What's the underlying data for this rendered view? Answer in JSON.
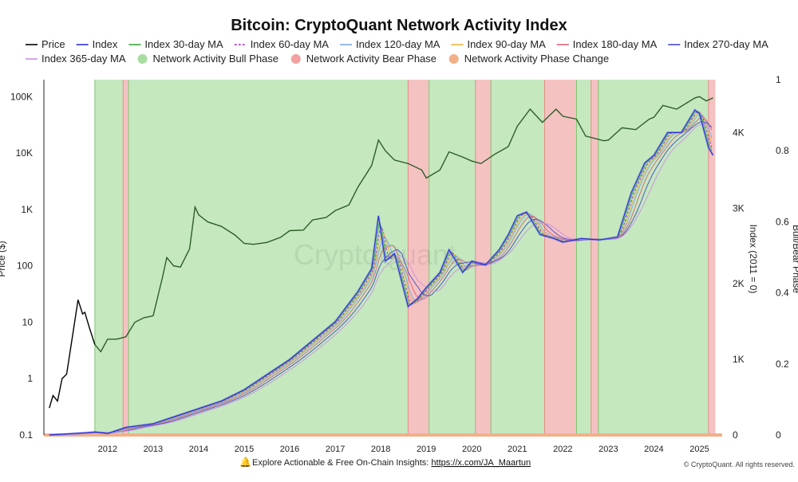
{
  "chart_data": {
    "type": "line",
    "title": "Bitcoin: CryptoQuant Network Activity Index",
    "ylabel_left": "Price ($)",
    "ylabel_right": "Index (2011 = 0)",
    "ylabel_far_right": "Bull/Bear Phase",
    "left_axis": {
      "scale": "log",
      "range": [
        0.1,
        200000
      ],
      "ticks": [
        0.1,
        1,
        10,
        100,
        1000,
        10000,
        100000
      ],
      "tick_labels": [
        "0.1",
        "1",
        "10",
        "100",
        "1K",
        "10K",
        "100K"
      ]
    },
    "right_axis": {
      "range": [
        0,
        4700
      ],
      "ticks": [
        0,
        1000,
        2000,
        3000,
        4000
      ],
      "tick_labels": [
        "0",
        "1K",
        "2K",
        "3K",
        "4K"
      ]
    },
    "far_right_axis": {
      "range": [
        0,
        1
      ],
      "ticks": [
        0,
        0.2,
        0.4,
        0.6,
        0.8,
        1
      ],
      "tick_labels": [
        "0",
        "0.2",
        "0.4",
        "0.6",
        "0.8",
        "1"
      ]
    },
    "x_axis": {
      "range": [
        2010.6,
        2025.5
      ],
      "ticks": [
        2012,
        2013,
        2014,
        2015,
        2016,
        2017,
        2018,
        2019,
        2020,
        2021,
        2022,
        2023,
        2024,
        2025
      ],
      "tick_labels": [
        "2012",
        "2013",
        "2014",
        "2015",
        "2016",
        "2017",
        "2018",
        "2019",
        "2020",
        "2021",
        "2022",
        "2023",
        "2024",
        "2025"
      ]
    },
    "legend": [
      {
        "name": "Price",
        "color": "#000000",
        "kind": "line"
      },
      {
        "name": "Index",
        "color": "#2b2fd6",
        "kind": "line"
      },
      {
        "name": "Index 30-day MA",
        "color": "#3aa83a",
        "kind": "line"
      },
      {
        "name": "Index 60-day MA",
        "color": "#9b2fbf",
        "kind": "dashed"
      },
      {
        "name": "Index 120-day MA",
        "color": "#7aa8e8",
        "kind": "line"
      },
      {
        "name": "Index 90-day MA",
        "color": "#f0b040",
        "kind": "line"
      },
      {
        "name": "Index 180-day MA",
        "color": "#d9607a",
        "kind": "line"
      },
      {
        "name": "Index 270-day MA",
        "color": "#4848c8",
        "kind": "line"
      },
      {
        "name": "Index 365-day MA",
        "color": "#c890e0",
        "kind": "line"
      },
      {
        "name": "Network Activity Bull Phase",
        "color": "#a8dca0",
        "kind": "dot"
      },
      {
        "name": "Network Activity Bear Phase",
        "color": "#f2a0a0",
        "kind": "dot"
      },
      {
        "name": "Network Activity Phase Change",
        "color": "#f2b088",
        "kind": "dot"
      }
    ],
    "phases": [
      {
        "type": "bull",
        "start": 2011.72,
        "end": 2012.34
      },
      {
        "type": "bear",
        "start": 2012.34,
        "end": 2012.46
      },
      {
        "type": "bull",
        "start": 2012.46,
        "end": 2018.6
      },
      {
        "type": "bear",
        "start": 2018.6,
        "end": 2019.06
      },
      {
        "type": "bull",
        "start": 2019.06,
        "end": 2020.08
      },
      {
        "type": "bear",
        "start": 2020.08,
        "end": 2020.42
      },
      {
        "type": "bull",
        "start": 2020.42,
        "end": 2021.6
      },
      {
        "type": "bear",
        "start": 2021.6,
        "end": 2022.3
      },
      {
        "type": "bull",
        "start": 2022.3,
        "end": 2022.62
      },
      {
        "type": "bear",
        "start": 2022.62,
        "end": 2022.78
      },
      {
        "type": "bull",
        "start": 2022.78,
        "end": 2025.2
      },
      {
        "type": "bear",
        "start": 2025.2,
        "end": 2025.35
      }
    ],
    "price_series": {
      "name": "Price",
      "x": [
        2010.72,
        2010.8,
        2010.9,
        2011.0,
        2011.1,
        2011.2,
        2011.35,
        2011.45,
        2011.5,
        2011.6,
        2011.72,
        2011.85,
        2012.0,
        2012.2,
        2012.4,
        2012.6,
        2012.8,
        2013.0,
        2013.2,
        2013.3,
        2013.45,
        2013.6,
        2013.8,
        2013.92,
        2014.0,
        2014.2,
        2014.5,
        2014.8,
        2015.0,
        2015.2,
        2015.5,
        2015.8,
        2016.0,
        2016.3,
        2016.5,
        2016.8,
        2017.0,
        2017.3,
        2017.5,
        2017.8,
        2017.95,
        2018.1,
        2018.3,
        2018.6,
        2018.9,
        2019.0,
        2019.3,
        2019.5,
        2019.8,
        2020.0,
        2020.2,
        2020.5,
        2020.8,
        2021.0,
        2021.28,
        2021.55,
        2021.85,
        2022.0,
        2022.3,
        2022.5,
        2022.9,
        2023.0,
        2023.3,
        2023.6,
        2023.9,
        2024.0,
        2024.2,
        2024.5,
        2024.9,
        2025.0,
        2025.15,
        2025.3
      ],
      "y": [
        0.3,
        0.5,
        0.4,
        1,
        1.2,
        4,
        25,
        14,
        15,
        8,
        4,
        3,
        5,
        5,
        5.5,
        10,
        12,
        13,
        60,
        140,
        100,
        95,
        200,
        1100,
        800,
        600,
        500,
        350,
        250,
        240,
        260,
        320,
        420,
        430,
        650,
        720,
        950,
        1200,
        2500,
        6000,
        17000,
        11000,
        7500,
        6500,
        5000,
        3600,
        5000,
        10500,
        8500,
        7200,
        6500,
        9500,
        13000,
        30000,
        60000,
        35000,
        60000,
        45000,
        40000,
        20000,
        16500,
        17000,
        28000,
        26000,
        40000,
        43000,
        70000,
        60000,
        95000,
        100000,
        84000,
        95000
      ]
    },
    "index_series": {
      "name": "Index",
      "x": [
        2010.72,
        2011.5,
        2011.72,
        2012.0,
        2012.4,
        2013.0,
        2013.5,
        2014.0,
        2014.5,
        2015.0,
        2015.5,
        2016.0,
        2016.5,
        2017.0,
        2017.5,
        2017.8,
        2017.95,
        2018.1,
        2018.3,
        2018.6,
        2018.8,
        2019.0,
        2019.3,
        2019.5,
        2019.8,
        2020.0,
        2020.3,
        2020.6,
        2020.8,
        2021.0,
        2021.2,
        2021.5,
        2021.8,
        2022.0,
        2022.4,
        2022.8,
        2023.0,
        2023.2,
        2023.5,
        2023.8,
        2024.0,
        2024.3,
        2024.6,
        2024.9,
        2025.0,
        2025.2,
        2025.3
      ],
      "y": [
        0,
        30,
        40,
        20,
        100,
        150,
        250,
        350,
        450,
        600,
        800,
        1000,
        1250,
        1500,
        1900,
        2200,
        2900,
        2300,
        2400,
        1700,
        1800,
        1950,
        2150,
        2450,
        2150,
        2300,
        2250,
        2450,
        2650,
        2900,
        2950,
        2650,
        2600,
        2550,
        2600,
        2580,
        2600,
        2620,
        3200,
        3600,
        3700,
        4000,
        4000,
        4300,
        4250,
        3800,
        3700
      ]
    },
    "ma_series": [
      {
        "name": "Index 30-day MA",
        "lag": 0.06
      },
      {
        "name": "Index 60-day MA",
        "lag": 0.12
      },
      {
        "name": "Index 90-day MA",
        "lag": 0.18
      },
      {
        "name": "Index 120-day MA",
        "lag": 0.24
      },
      {
        "name": "Index 180-day MA",
        "lag": 0.36
      },
      {
        "name": "Index 270-day MA",
        "lag": 0.52
      },
      {
        "name": "Index 365-day MA",
        "lag": 0.7
      }
    ],
    "watermark": "CryptoQuant"
  },
  "footer": {
    "insight_text": "Explore Actionable & Free On-Chain Insights: ",
    "link_text": "https://x.com/JA_Maartun",
    "copyright": "© CryptoQuant. All rights reserved."
  }
}
